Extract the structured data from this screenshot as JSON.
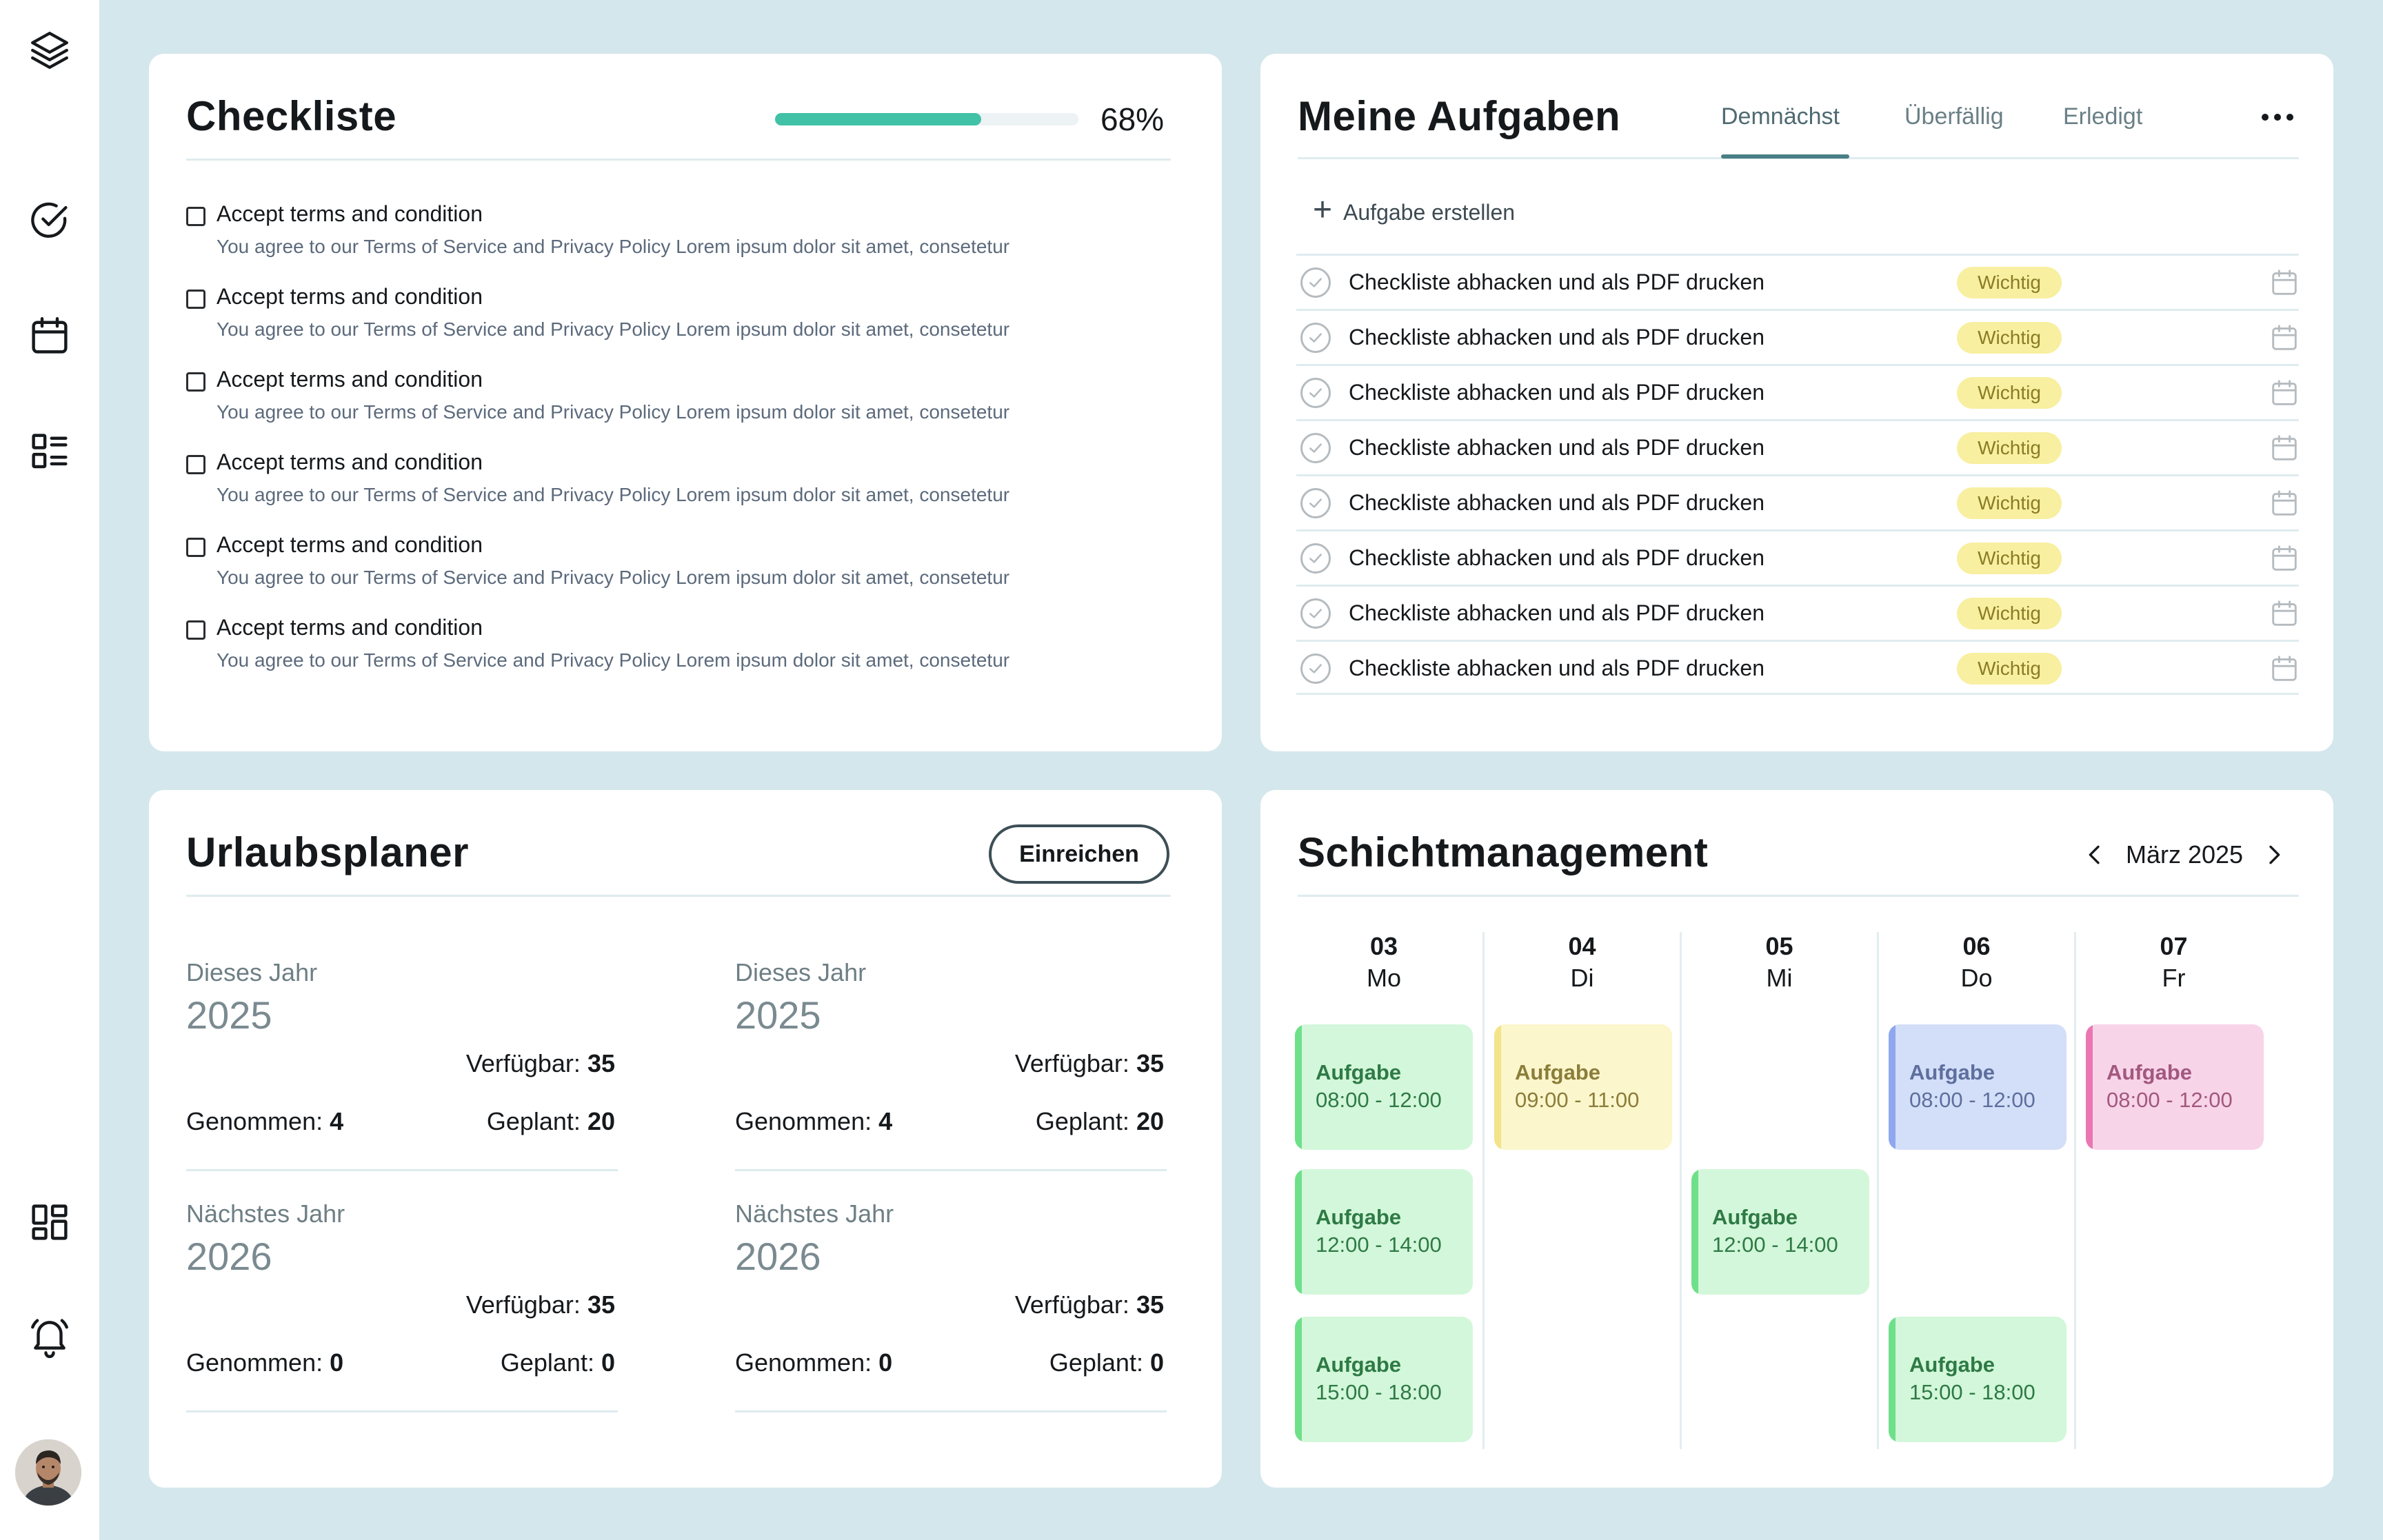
{
  "colors": {
    "background": "#d4e7ec",
    "progress": "#41c2a6",
    "badge_bg": "#f8efa0",
    "badge_text": "#8a7c24",
    "shift_green_bg": "#d3f7da",
    "shift_green_bar": "#6fe08a",
    "shift_green_text": "#2e7a45",
    "shift_yellow_bg": "#fbf6cc",
    "shift_yellow_bar": "#f3e48a",
    "shift_yellow_text": "#8b7d3a",
    "shift_blue_bg": "#d3def8",
    "shift_blue_bar": "#8fa7ee",
    "shift_blue_text": "#5e6f9e",
    "shift_pink_bg": "#f8d4e8",
    "shift_pink_bar": "#ea77b3",
    "shift_pink_text": "#a2587f"
  },
  "sidebar": {
    "icons": [
      "layers-icon",
      "check-circle-icon",
      "calendar-icon",
      "list-icon",
      "dashboard-icon",
      "bell-icon"
    ],
    "avatar": "user-avatar"
  },
  "checklist": {
    "title": "Checkliste",
    "progress": 0.68,
    "progress_label": "68%",
    "items": [
      {
        "title": "Accept terms and condition",
        "desc": "You agree to our Terms of Service and Privacy Policy Lorem ipsum dolor sit amet, consetetur",
        "checked": false
      },
      {
        "title": "Accept terms and condition",
        "desc": "You agree to our Terms of Service and Privacy Policy Lorem ipsum dolor sit amet, consetetur",
        "checked": false
      },
      {
        "title": "Accept terms and condition",
        "desc": "You agree to our Terms of Service and Privacy Policy Lorem ipsum dolor sit amet, consetetur",
        "checked": false
      },
      {
        "title": "Accept terms and condition",
        "desc": "You agree to our Terms of Service and Privacy Policy Lorem ipsum dolor sit amet, consetetur",
        "checked": false
      },
      {
        "title": "Accept terms and condition",
        "desc": "You agree to our Terms of Service and Privacy Policy Lorem ipsum dolor sit amet, consetetur",
        "checked": false
      },
      {
        "title": "Accept terms and condition",
        "desc": "You agree to our Terms of Service and Privacy Policy Lorem ipsum dolor sit amet, consetetur",
        "checked": false
      }
    ]
  },
  "tasks": {
    "title": "Meine Aufgaben",
    "tabs": [
      {
        "label": "Demnächst",
        "active": true
      },
      {
        "label": "Überfällig",
        "active": false
      },
      {
        "label": "Erledigt",
        "active": false
      }
    ],
    "create_label": "Aufgabe erstellen",
    "rows": [
      {
        "text": "Checkliste abhacken und als PDF drucken",
        "badge": "Wichtig"
      },
      {
        "text": "Checkliste abhacken und als PDF drucken",
        "badge": "Wichtig"
      },
      {
        "text": "Checkliste abhacken und als PDF drucken",
        "badge": "Wichtig"
      },
      {
        "text": "Checkliste abhacken und als PDF drucken",
        "badge": "Wichtig"
      },
      {
        "text": "Checkliste abhacken und als PDF drucken",
        "badge": "Wichtig"
      },
      {
        "text": "Checkliste abhacken und als PDF drucken",
        "badge": "Wichtig"
      },
      {
        "text": "Checkliste abhacken und als PDF drucken",
        "badge": "Wichtig"
      },
      {
        "text": "Checkliste abhacken und als PDF drucken",
        "badge": "Wichtig"
      }
    ]
  },
  "vacation": {
    "title": "Urlaubsplaner",
    "submit_label": "Einreichen",
    "blocks": [
      {
        "label": "Dieses Jahr",
        "year": "2025",
        "available_label": "Verfügbar:",
        "available": "35",
        "taken_label": "Genommen:",
        "taken": "4",
        "planned_label": "Geplant:",
        "planned": "20"
      },
      {
        "label": "Dieses Jahr",
        "year": "2025",
        "available_label": "Verfügbar:",
        "available": "35",
        "taken_label": "Genommen:",
        "taken": "4",
        "planned_label": "Geplant:",
        "planned": "20"
      },
      {
        "label": "Nächstes Jahr",
        "year": "2026",
        "available_label": "Verfügbar:",
        "available": "35",
        "taken_label": "Genommen:",
        "taken": "0",
        "planned_label": "Geplant:",
        "planned": "0"
      },
      {
        "label": "Nächstes Jahr",
        "year": "2026",
        "available_label": "Verfügbar:",
        "available": "35",
        "taken_label": "Genommen:",
        "taken": "0",
        "planned_label": "Geplant:",
        "planned": "0"
      }
    ]
  },
  "shift": {
    "title": "Schichtmanagement",
    "month": "März 2025",
    "days": [
      {
        "num": "03",
        "name": "Mo"
      },
      {
        "num": "04",
        "name": "Di"
      },
      {
        "num": "05",
        "name": "Mi"
      },
      {
        "num": "06",
        "name": "Do"
      },
      {
        "num": "07",
        "name": "Fr"
      }
    ],
    "shifts": [
      {
        "day": 0,
        "slot": 0,
        "title": "Aufgabe",
        "time": "08:00 - 12:00",
        "color": "green"
      },
      {
        "day": 0,
        "slot": 1,
        "title": "Aufgabe",
        "time": "12:00 - 14:00",
        "color": "green"
      },
      {
        "day": 0,
        "slot": 2,
        "title": "Aufgabe",
        "time": "15:00 - 18:00",
        "color": "green"
      },
      {
        "day": 1,
        "slot": 0,
        "title": "Aufgabe",
        "time": "09:00 - 11:00",
        "color": "yellow"
      },
      {
        "day": 2,
        "slot": 1,
        "title": "Aufgabe",
        "time": "12:00 - 14:00",
        "color": "green"
      },
      {
        "day": 3,
        "slot": 0,
        "title": "Aufgabe",
        "time": "08:00 - 12:00",
        "color": "blue"
      },
      {
        "day": 3,
        "slot": 2,
        "title": "Aufgabe",
        "time": "15:00 - 18:00",
        "color": "green"
      },
      {
        "day": 4,
        "slot": 0,
        "title": "Aufgabe",
        "time": "08:00 - 12:00",
        "color": "pink"
      }
    ]
  }
}
